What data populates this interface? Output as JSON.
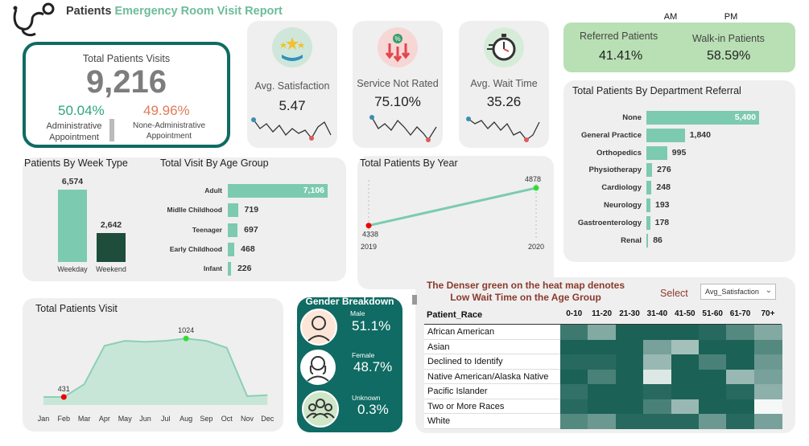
{
  "header": {
    "title_part1": "Patients ",
    "title_part2": "Emergency Room ",
    "title_part3": "Visit Report"
  },
  "colors": {
    "accent": "#7ccab0",
    "dark_teal": "#0f6b63",
    "title_dark": "#3a3a3a",
    "title_green": "#6dbb9a",
    "green_pct": "#2ea67b",
    "orange_pct": "#e07b5a",
    "dark_bar": "#1e4d3c"
  },
  "ampm": {
    "am": "AM",
    "pm": "PM"
  },
  "total_visits": {
    "label": "Total Patients Visits",
    "value": "9,216",
    "admin_pct": "50.04%",
    "admin_label": "Administrative Appointment",
    "nonadmin_pct": "49.96%",
    "nonadmin_label": "None-Administrative Appointment"
  },
  "kpis": [
    {
      "label": "Avg. Satisfaction",
      "value": "5.47",
      "icon": "stars-hand-icon"
    },
    {
      "label": "Service Not Rated",
      "value": "75.10%",
      "icon": "down-arrows-icon"
    },
    {
      "label": "Avg. Wait Time",
      "value": "35.26",
      "icon": "stopwatch-icon"
    }
  ],
  "referral": {
    "referred_label": "Referred Patients",
    "referred_value": "41.41%",
    "walkin_label": "Walk-in Patients",
    "walkin_value": "58.59%"
  },
  "department": {
    "title": "Total Patients By Department Referral"
  },
  "week": {
    "title": "Patients By Week Type"
  },
  "age": {
    "title": "Total Visit By Age Group"
  },
  "year": {
    "title": "Total Patients By Year"
  },
  "monthly": {
    "title": "Total Patients Visit"
  },
  "gender": {
    "title": "Gender Breakdown",
    "items": [
      {
        "label": "Male",
        "value": "51.1%",
        "icon": "male-avatar-icon"
      },
      {
        "label": "Female",
        "value": "48.7%",
        "icon": "female-avatar-icon"
      },
      {
        "label": "Unknown",
        "value": "0.3%",
        "icon": "group-icon"
      }
    ]
  },
  "heatmap": {
    "note_line1": "The Denser green on the heat map denotes",
    "note_line2": "Low Wait Time on the Age Group",
    "select_label": "Select",
    "select_value": "Avg_Satisfaction",
    "row_header": "Patient_Race"
  },
  "chart_data": [
    {
      "type": "bar",
      "name": "week",
      "categories": [
        "Weekday",
        "Weekend"
      ],
      "values": [
        6574,
        2642
      ],
      "labels": [
        "6,574",
        "2,642"
      ]
    },
    {
      "type": "bar",
      "orientation": "horizontal",
      "name": "age",
      "categories": [
        "Adult",
        "Midlle Childhood",
        "Teenager",
        "Early Childhood",
        "Infant"
      ],
      "values": [
        7106,
        719,
        697,
        468,
        226
      ],
      "labels": [
        "7,106",
        "719",
        "697",
        "468",
        "226"
      ]
    },
    {
      "type": "bar",
      "orientation": "horizontal",
      "name": "department",
      "categories": [
        "None",
        "General Practice",
        "Orthopedics",
        "Physiotherapy",
        "Cardiology",
        "Neurology",
        "Gastroenterology",
        "Renal"
      ],
      "values": [
        5400,
        1840,
        995,
        276,
        248,
        193,
        178,
        86
      ],
      "labels": [
        "5,400",
        "1,840",
        "995",
        "276",
        "248",
        "193",
        "178",
        "86"
      ]
    },
    {
      "type": "line",
      "name": "year",
      "x": [
        "2019",
        "2020"
      ],
      "values": [
        4338,
        4878
      ],
      "labels": [
        "4338",
        "4878"
      ]
    },
    {
      "type": "area",
      "name": "monthly",
      "x": [
        "Jan",
        "Feb",
        "Mar",
        "Apr",
        "May",
        "Jun",
        "Jul",
        "Aug",
        "Sep",
        "Oct",
        "Nov",
        "Dec"
      ],
      "values": [
        431,
        431,
        560,
        950,
        1000,
        990,
        1000,
        1024,
        1000,
        930,
        440,
        450
      ],
      "annotations": [
        {
          "x": "Feb",
          "label": "431"
        },
        {
          "x": "Aug",
          "label": "1024"
        }
      ]
    },
    {
      "type": "heatmap",
      "name": "race_age",
      "columns": [
        "0-10",
        "11-20",
        "21-30",
        "31-40",
        "41-50",
        "51-60",
        "61-70",
        "70+"
      ],
      "rows": [
        "African American",
        "Asian",
        "Declined to Identify",
        "Native American/Alaska Native",
        "Pacific Islander",
        "Two or More Races",
        "White"
      ],
      "values": [
        [
          0.2,
          0.5,
          0.05,
          0.05,
          0.05,
          0.1,
          0.3,
          0.5
        ],
        [
          0.05,
          0.05,
          0.05,
          0.45,
          0.65,
          0.05,
          0.05,
          0.3
        ],
        [
          0.1,
          0.1,
          0.05,
          0.6,
          0.05,
          0.25,
          0.05,
          0.4
        ],
        [
          0.05,
          0.25,
          0.05,
          0.9,
          0.05,
          0.05,
          0.6,
          0.45
        ],
        [
          0.15,
          0.05,
          0.05,
          0.1,
          0.05,
          0.05,
          0.1,
          0.55
        ],
        [
          0.1,
          0.05,
          0.05,
          0.25,
          0.6,
          0.05,
          0.05,
          1.0
        ],
        [
          0.3,
          0.4,
          0.1,
          0.1,
          0.1,
          0.4,
          0.1,
          0.45
        ]
      ]
    }
  ]
}
